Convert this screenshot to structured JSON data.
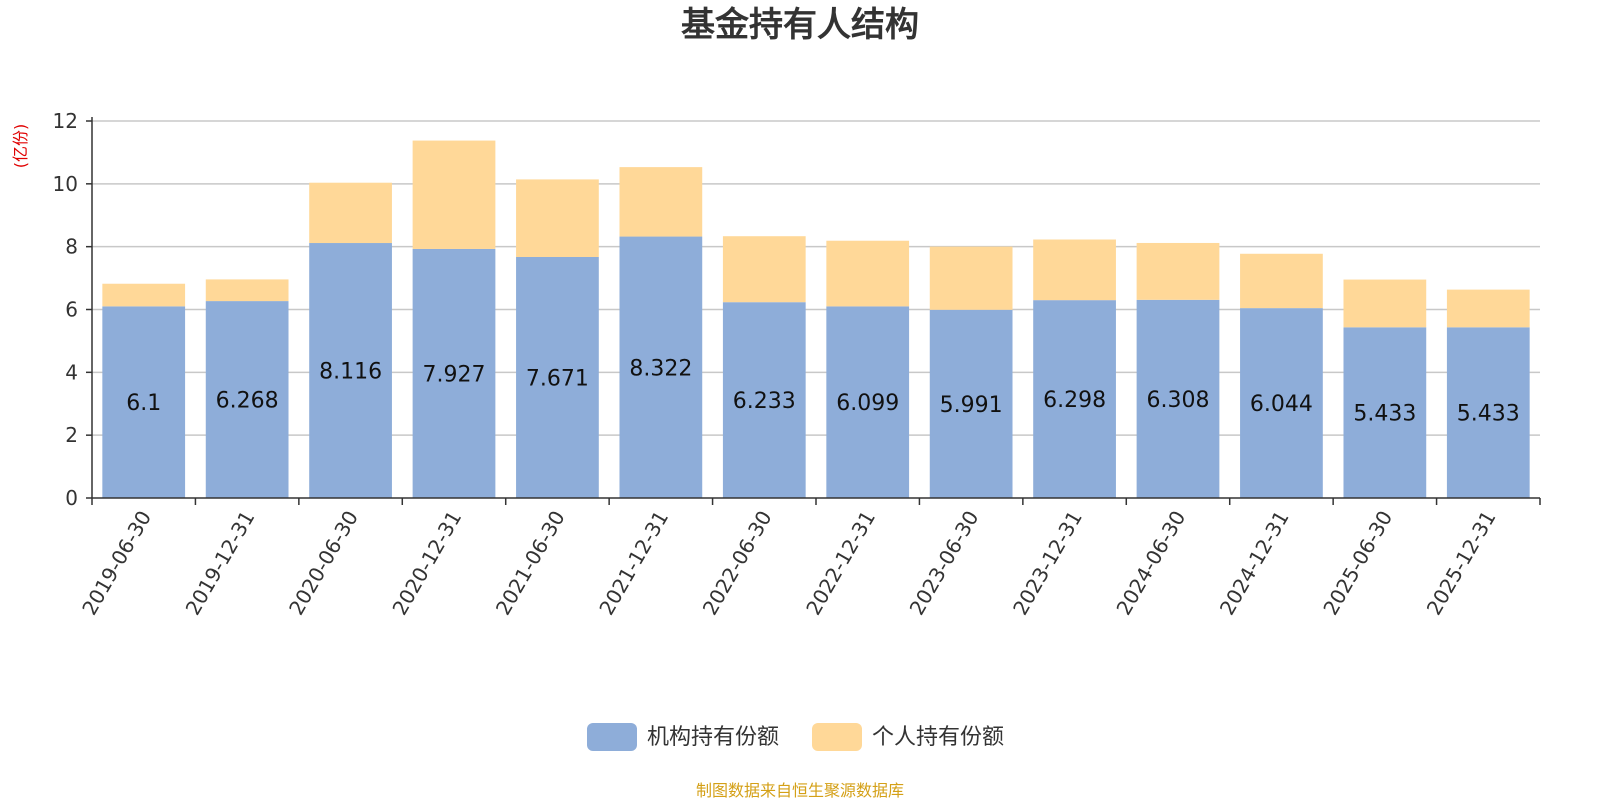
{
  "chart_data": {
    "type": "bar",
    "stacked": true,
    "title": "基金持有人结构",
    "ylabel": "(亿份)",
    "ylim": [
      0,
      12
    ],
    "yticks": [
      0,
      2,
      4,
      6,
      8,
      10,
      12
    ],
    "grid": true,
    "legend_position": "bottom-center",
    "categories": [
      "2019-06-30",
      "2019-12-31",
      "2020-06-30",
      "2020-12-31",
      "2021-06-30",
      "2021-12-31",
      "2022-06-30",
      "2022-12-31",
      "2023-06-30",
      "2023-12-31",
      "2024-06-30",
      "2024-12-31",
      "2025-06-30",
      "2025-12-31"
    ],
    "series": [
      {
        "name": "机构持有份额",
        "color": "#8eadd9",
        "values": [
          6.1,
          6.268,
          8.116,
          7.927,
          7.671,
          8.322,
          6.233,
          6.099,
          5.991,
          6.298,
          6.308,
          6.044,
          5.433,
          5.433
        ],
        "value_labels": [
          "6.1",
          "6.268",
          "8.116",
          "7.927",
          "7.671",
          "8.322",
          "6.233",
          "6.099",
          "5.991",
          "6.298",
          "6.308",
          "6.044",
          "5.433",
          "5.433"
        ]
      },
      {
        "name": "个人持有份额",
        "color": "#ffd898",
        "values": [
          0.72,
          0.69,
          1.92,
          3.45,
          2.47,
          2.21,
          2.1,
          2.09,
          2.01,
          1.93,
          1.81,
          1.73,
          1.52,
          1.2
        ]
      }
    ],
    "source_note": "制图数据来自恒生聚源数据库",
    "colors": {
      "title": "#333333",
      "axis_label": "#e00000",
      "source_note": "#d4a017",
      "grid": "#c8c8c8"
    }
  }
}
